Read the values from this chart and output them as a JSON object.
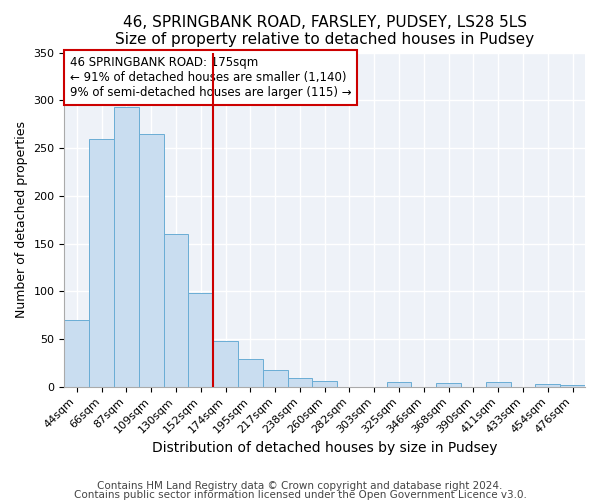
{
  "title": "46, SPRINGBANK ROAD, FARSLEY, PUDSEY, LS28 5LS",
  "subtitle": "Size of property relative to detached houses in Pudsey",
  "xlabel": "Distribution of detached houses by size in Pudsey",
  "ylabel": "Number of detached properties",
  "bar_labels": [
    "44sqm",
    "66sqm",
    "87sqm",
    "109sqm",
    "130sqm",
    "152sqm",
    "174sqm",
    "195sqm",
    "217sqm",
    "238sqm",
    "260sqm",
    "282sqm",
    "303sqm",
    "325sqm",
    "346sqm",
    "368sqm",
    "390sqm",
    "411sqm",
    "433sqm",
    "454sqm",
    "476sqm"
  ],
  "bar_values": [
    70,
    260,
    293,
    265,
    160,
    98,
    48,
    29,
    18,
    9,
    6,
    0,
    0,
    5,
    0,
    4,
    0,
    5,
    0,
    3,
    2
  ],
  "bar_color": "#c9ddf0",
  "bar_edgecolor": "#6aadd5",
  "vline_x_index": 6,
  "vline_color": "#cc0000",
  "annotation_line1": "46 SPRINGBANK ROAD: 175sqm",
  "annotation_line2": "← 91% of detached houses are smaller (1,140)",
  "annotation_line3": "9% of semi-detached houses are larger (115) →",
  "annotation_box_fc": "white",
  "annotation_box_ec": "#cc0000",
  "ylim": [
    0,
    350
  ],
  "yticks": [
    0,
    50,
    100,
    150,
    200,
    250,
    300,
    350
  ],
  "footnote1": "Contains HM Land Registry data © Crown copyright and database right 2024.",
  "footnote2": "Contains public sector information licensed under the Open Government Licence v3.0.",
  "title_fontsize": 11,
  "xlabel_fontsize": 10,
  "ylabel_fontsize": 9,
  "tick_fontsize": 8,
  "annotation_fontsize": 8.5,
  "footnote_fontsize": 7.5,
  "bg_color": "#eef2f8"
}
